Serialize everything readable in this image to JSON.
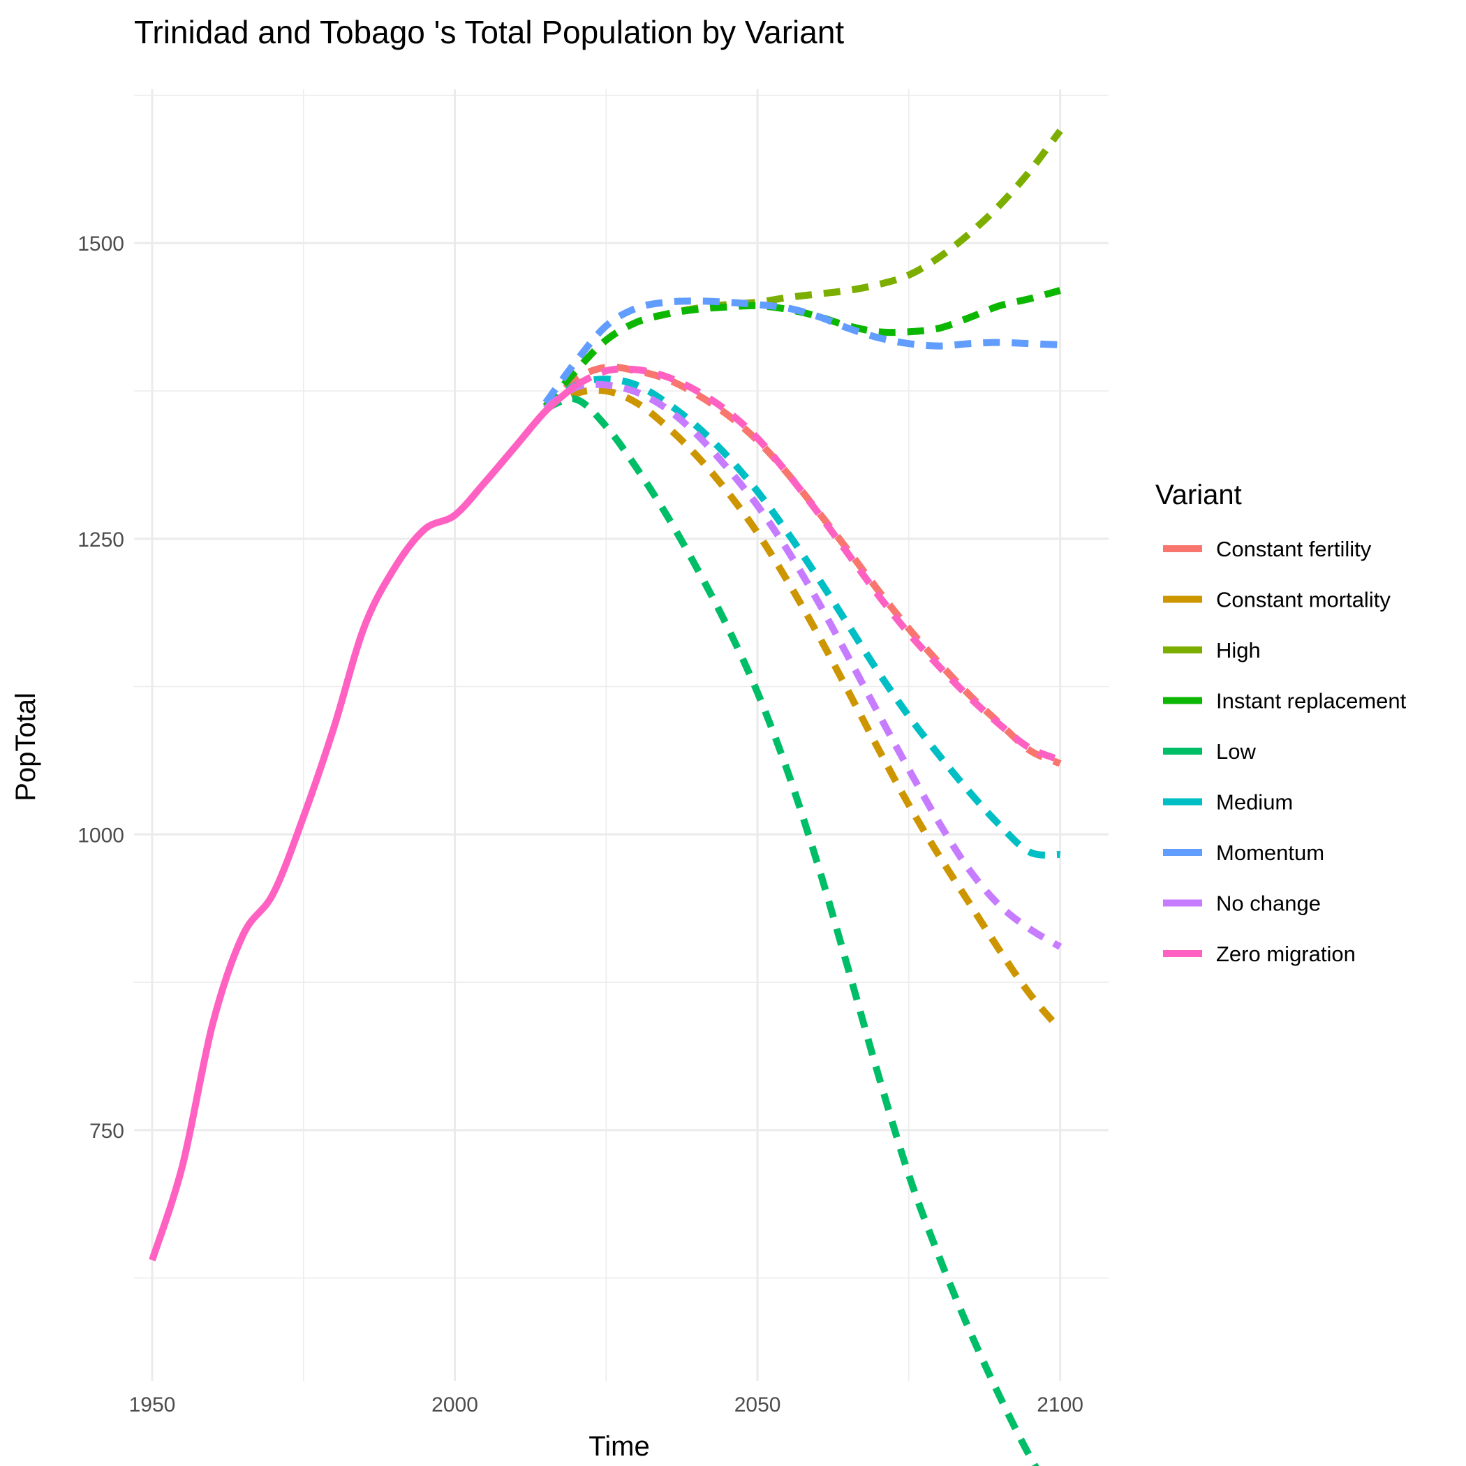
{
  "chart_data": {
    "type": "line",
    "title": "Trinidad and Tobago 's Total Population by Variant",
    "xlabel": "Time",
    "ylabel": "PopTotal",
    "xlim": [
      1947,
      2108
    ],
    "ylim": [
      538,
      1630
    ],
    "x_ticks": [
      {
        "value": 1950,
        "label": "1950"
      },
      {
        "value": 2000,
        "label": "2000"
      },
      {
        "value": 2050,
        "label": "2050"
      },
      {
        "value": 2100,
        "label": "2100"
      }
    ],
    "y_ticks": [
      {
        "value": 750,
        "label": "750"
      },
      {
        "value": 1000,
        "label": "1000"
      },
      {
        "value": 1250,
        "label": "1250"
      },
      {
        "value": 1500,
        "label": "1500"
      }
    ],
    "grid": true,
    "legend": {
      "title": "Variant",
      "position": "right"
    },
    "series": [
      {
        "name": "Constant fertility",
        "color": "#F8766D",
        "dashed": true,
        "x": [
          2015,
          2020,
          2025,
          2030,
          2035,
          2040,
          2045,
          2050,
          2055,
          2060,
          2065,
          2070,
          2075,
          2080,
          2085,
          2090,
          2095,
          2100
        ],
        "y": [
          1360,
          1385,
          1395,
          1392,
          1385,
          1372,
          1355,
          1333,
          1305,
          1273,
          1240,
          1206,
          1174,
          1145,
          1118,
          1094,
          1071,
          1060
        ]
      },
      {
        "name": "Constant mortality",
        "color": "#CD9600",
        "dashed": true,
        "x": [
          2015,
          2020,
          2025,
          2030,
          2035,
          2040,
          2045,
          2050,
          2055,
          2060,
          2065,
          2070,
          2075,
          2080,
          2085,
          2090,
          2095,
          2100
        ],
        "y": [
          1360,
          1373,
          1375,
          1365,
          1345,
          1320,
          1290,
          1255,
          1214,
          1169,
          1121,
          1072,
          1025,
          982,
          942,
          902,
          865,
          835
        ]
      },
      {
        "name": "High",
        "color": "#7CAE00",
        "dashed": true,
        "x": [
          2015,
          2020,
          2025,
          2030,
          2035,
          2040,
          2045,
          2050,
          2055,
          2060,
          2065,
          2070,
          2075,
          2080,
          2085,
          2090,
          2095,
          2100
        ],
        "y": [
          1362,
          1392,
          1418,
          1433,
          1440,
          1445,
          1448,
          1450,
          1454,
          1457,
          1460,
          1465,
          1473,
          1488,
          1508,
          1532,
          1561,
          1595
        ]
      },
      {
        "name": "Instant replacement",
        "color": "#0CB702",
        "dashed": true,
        "x": [
          2015,
          2020,
          2025,
          2030,
          2035,
          2040,
          2045,
          2050,
          2055,
          2060,
          2065,
          2070,
          2075,
          2080,
          2085,
          2090,
          2095,
          2100
        ],
        "y": [
          1362,
          1392,
          1418,
          1433,
          1440,
          1444,
          1446,
          1447,
          1444,
          1438,
          1430,
          1425,
          1425,
          1428,
          1437,
          1447,
          1453,
          1460
        ]
      },
      {
        "name": "Low",
        "color": "#00BE67",
        "dashed": true,
        "x": [
          2015,
          2020,
          2025,
          2030,
          2035,
          2040,
          2045,
          2050,
          2055,
          2060,
          2065,
          2070,
          2075,
          2080,
          2085,
          2090,
          2095,
          2100
        ],
        "y": [
          1360,
          1368,
          1345,
          1310,
          1270,
          1225,
          1176,
          1120,
          1053,
          974,
          886,
          796,
          712,
          643,
          581,
          525,
          474,
          430
        ]
      },
      {
        "name": "Medium",
        "color": "#00BFC4",
        "dashed": true,
        "x": [
          2015,
          2020,
          2025,
          2030,
          2035,
          2040,
          2045,
          2050,
          2055,
          2060,
          2065,
          2070,
          2075,
          2080,
          2085,
          2090,
          2095,
          2100
        ],
        "y": [
          1360,
          1380,
          1385,
          1380,
          1365,
          1345,
          1320,
          1290,
          1255,
          1217,
          1177,
          1137,
          1100,
          1067,
          1036,
          1008,
          985,
          983
        ]
      },
      {
        "name": "Momentum",
        "color": "#619CFF",
        "dashed": true,
        "x": [
          2015,
          2020,
          2025,
          2030,
          2035,
          2040,
          2045,
          2050,
          2055,
          2060,
          2065,
          2070,
          2075,
          2080,
          2085,
          2090,
          2095,
          2100
        ],
        "y": [
          1365,
          1400,
          1430,
          1445,
          1450,
          1451,
          1450,
          1448,
          1445,
          1438,
          1428,
          1420,
          1415,
          1413,
          1415,
          1416,
          1415,
          1414
        ]
      },
      {
        "name": "No change",
        "color": "#C77CFF",
        "dashed": true,
        "x": [
          2015,
          2020,
          2025,
          2030,
          2035,
          2040,
          2045,
          2050,
          2055,
          2060,
          2065,
          2070,
          2075,
          2080,
          2085,
          2090,
          2095,
          2100
        ],
        "y": [
          1360,
          1378,
          1380,
          1374,
          1360,
          1338,
          1310,
          1278,
          1240,
          1197,
          1150,
          1102,
          1055,
          1010,
          970,
          940,
          920,
          905
        ]
      },
      {
        "name": "Zero migration",
        "color": "#FF61C3",
        "dashed": false,
        "x": [
          1950,
          1955,
          1960,
          1965,
          1970,
          1975,
          1980,
          1985,
          1990,
          1995,
          2000,
          2005,
          2010,
          2015,
          2020
        ],
        "y": [
          640,
          720,
          840,
          915,
          950,
          1015,
          1090,
          1175,
          1225,
          1258,
          1270,
          1298,
          1328,
          1358,
          1380
        ]
      },
      {
        "name": "Zero migration",
        "color": "#FF61C3",
        "dashed": true,
        "x": [
          2020,
          2025,
          2030,
          2035,
          2040,
          2045,
          2050,
          2055,
          2060,
          2065,
          2070,
          2075,
          2080,
          2085,
          2090,
          2095,
          2100
        ],
        "y": [
          1380,
          1392,
          1393,
          1387,
          1375,
          1358,
          1335,
          1305,
          1272,
          1237,
          1202,
          1170,
          1142,
          1116,
          1093,
          1073,
          1063
        ]
      }
    ]
  }
}
